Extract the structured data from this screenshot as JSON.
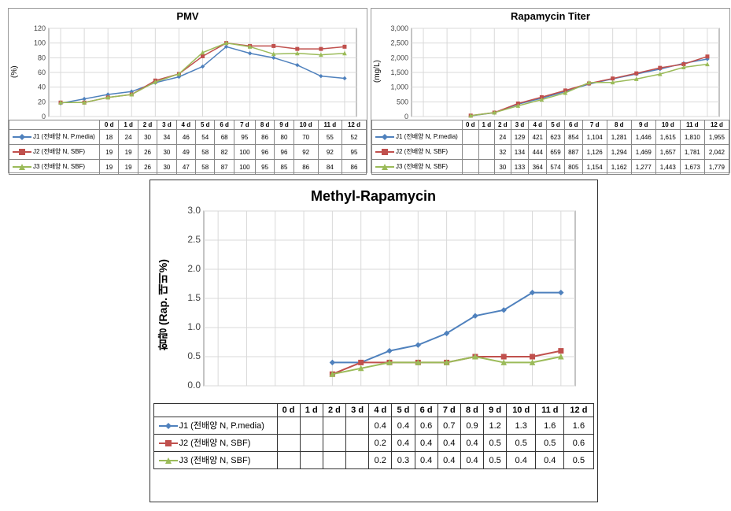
{
  "categories": [
    "0 d",
    "1 d",
    "2 d",
    "3 d",
    "4 d",
    "5 d",
    "6 d",
    "7 d",
    "8 d",
    "9 d",
    "10 d",
    "11 d",
    "12 d"
  ],
  "series_labels": {
    "J1": "J1 (전배양 N, P.media)",
    "J2": "J2 (전배양 N, SBF)",
    "J3": "J3 (전배양 N, SBF)"
  },
  "colors": {
    "J1": "#4f81bd",
    "J2": "#c0504d",
    "J3": "#9bbb59",
    "grid": "#d9d9d9",
    "axis": "#888888",
    "plot_bg": "#ffffff",
    "chart_border": "#999999"
  },
  "markers": {
    "J1": "diamond",
    "J2": "square",
    "J3": "triangle"
  },
  "pmv": {
    "title": "PMV",
    "type": "line",
    "ylabel": "(%)",
    "ylim": [
      0,
      120
    ],
    "ytick_step": 20,
    "line_width": 1.5,
    "marker_size": 4,
    "title_fontsize": 13,
    "label_fontsize": 10,
    "grid_on": true,
    "data": {
      "J1": [
        18,
        24,
        30,
        34,
        46,
        54,
        68,
        95,
        86,
        80,
        70,
        55,
        52
      ],
      "J2": [
        19,
        19,
        26,
        30,
        49,
        58,
        82,
        100,
        96,
        96,
        92,
        92,
        95
      ],
      "J3": [
        19,
        19,
        26,
        30,
        47,
        58,
        87,
        100,
        95,
        85,
        86,
        84,
        86
      ]
    }
  },
  "titer": {
    "title": "Rapamycin  Titer",
    "type": "line",
    "ylabel": "(mg/L)",
    "ylim": [
      0,
      3000
    ],
    "ytick_step": 500,
    "line_width": 1.5,
    "marker_size": 4,
    "title_fontsize": 13,
    "label_fontsize": 10,
    "tick_format": "comma",
    "grid_on": true,
    "data": {
      "J1": [
        null,
        null,
        24,
        129,
        421,
        623,
        854,
        1104,
        1281,
        1446,
        1615,
        1810,
        1955
      ],
      "J2": [
        null,
        null,
        32,
        134,
        444,
        659,
        887,
        1126,
        1294,
        1469,
        1657,
        1781,
        2042
      ],
      "J3": [
        null,
        null,
        30,
        133,
        364,
        574,
        805,
        1154,
        1162,
        1277,
        1443,
        1673,
        1779
      ]
    }
  },
  "methyl": {
    "title": "Methyl-Rapamycin",
    "type": "line",
    "ylabel": "함량 (Rap. 대비%)",
    "ylim": [
      0,
      3.0
    ],
    "ytick_step": 0.5,
    "line_width": 2,
    "marker_size": 6,
    "title_fontsize": 18,
    "label_fontsize": 14,
    "tick_format": "fixed1",
    "grid_on": true,
    "data": {
      "J1": [
        null,
        null,
        null,
        null,
        0.4,
        0.4,
        0.6,
        0.7,
        0.9,
        1.2,
        1.3,
        1.6,
        1.6
      ],
      "J2": [
        null,
        null,
        null,
        null,
        0.2,
        0.4,
        0.4,
        0.4,
        0.4,
        0.5,
        0.5,
        0.5,
        0.6
      ],
      "J3": [
        null,
        null,
        null,
        null,
        0.2,
        0.3,
        0.4,
        0.4,
        0.4,
        0.5,
        0.4,
        0.4,
        0.5
      ]
    }
  }
}
